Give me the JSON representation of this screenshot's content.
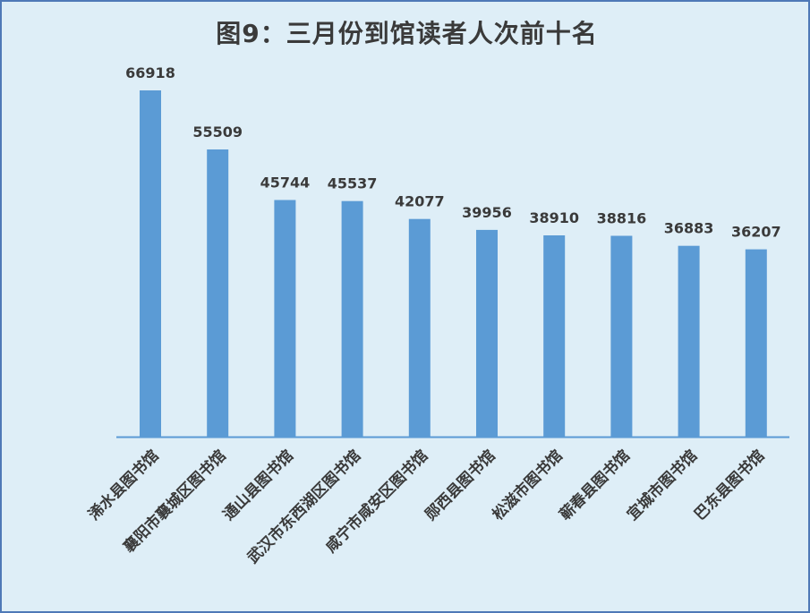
{
  "chart_data": {
    "type": "bar",
    "title": "图9：三月份到馆读者人次前十名",
    "xlabel": "",
    "ylabel": "",
    "ylim": [
      0,
      70000
    ],
    "grid": false,
    "legend": "none",
    "categories": [
      "浠水县图书馆",
      "襄阳市襄城区图书馆",
      "通山县图书馆",
      "武汉市东西湖区图书馆",
      "咸宁市咸安区图书馆",
      "郧西县图书馆",
      "松滋市图书馆",
      "蕲春县图书馆",
      "宜城市图书馆",
      "巴东县图书馆"
    ],
    "values": [
      66918,
      55509,
      45744,
      45537,
      42077,
      39956,
      38910,
      38816,
      36883,
      36207
    ],
    "colors": {
      "bar": "#5b9bd5",
      "axis": "#5b9bd5",
      "background": "#deeef7",
      "border": "#4e79b7",
      "text": "#3a3a3a"
    }
  }
}
